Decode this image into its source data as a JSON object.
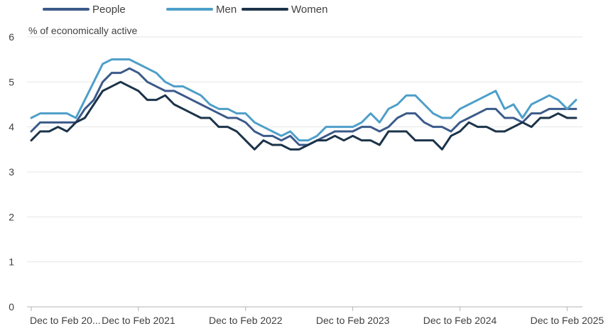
{
  "chart_data": {
    "type": "line",
    "ylabel": "% of economically active",
    "ylim": [
      0,
      6
    ],
    "y_ticks": [
      "0",
      "1",
      "2",
      "3",
      "4",
      "5",
      "6"
    ],
    "x_tick_labels": [
      "Dec to Feb 20...",
      "Dec to Feb 2021",
      "Dec to Feb 2022",
      "Dec to Feb 2023",
      "Dec to Feb 2024",
      "Dec to Feb 2025"
    ],
    "x_tick_indices": [
      0,
      12,
      24,
      36,
      48,
      60
    ],
    "grid": true,
    "legend_position": "top-left",
    "series": [
      {
        "name": "People",
        "color": "#3c5a8a",
        "values": [
          3.9,
          4.1,
          4.1,
          4.1,
          4.1,
          4.1,
          4.4,
          4.6,
          5.0,
          5.2,
          5.2,
          5.3,
          5.2,
          5.0,
          4.9,
          4.8,
          4.8,
          4.7,
          4.6,
          4.5,
          4.4,
          4.3,
          4.2,
          4.2,
          4.1,
          3.9,
          3.8,
          3.8,
          3.7,
          3.8,
          3.6,
          3.6,
          3.7,
          3.8,
          3.9,
          3.9,
          3.9,
          4.0,
          4.0,
          3.9,
          4.0,
          4.2,
          4.3,
          4.3,
          4.1,
          4.0,
          4.0,
          3.9,
          4.1,
          4.2,
          4.3,
          4.4,
          4.4,
          4.2,
          4.2,
          4.1,
          4.3,
          4.3,
          4.4,
          4.4,
          4.4,
          4.4
        ]
      },
      {
        "name": "Men",
        "color": "#4e9fc9",
        "values": [
          4.2,
          4.3,
          4.3,
          4.3,
          4.3,
          4.2,
          4.6,
          5.0,
          5.4,
          5.5,
          5.5,
          5.5,
          5.4,
          5.3,
          5.2,
          5.0,
          4.9,
          4.9,
          4.8,
          4.7,
          4.5,
          4.4,
          4.4,
          4.3,
          4.3,
          4.1,
          4.0,
          3.9,
          3.8,
          3.9,
          3.7,
          3.7,
          3.8,
          4.0,
          4.0,
          4.0,
          4.0,
          4.1,
          4.3,
          4.1,
          4.4,
          4.5,
          4.7,
          4.7,
          4.5,
          4.3,
          4.2,
          4.2,
          4.4,
          4.5,
          4.6,
          4.7,
          4.8,
          4.4,
          4.5,
          4.2,
          4.5,
          4.6,
          4.7,
          4.6,
          4.4,
          4.6
        ]
      },
      {
        "name": "Women",
        "color": "#1b3349",
        "values": [
          3.7,
          3.9,
          3.9,
          4.0,
          3.9,
          4.1,
          4.2,
          4.5,
          4.8,
          4.9,
          5.0,
          4.9,
          4.8,
          4.6,
          4.6,
          4.7,
          4.5,
          4.4,
          4.3,
          4.2,
          4.2,
          4.0,
          4.0,
          3.9,
          3.7,
          3.5,
          3.7,
          3.6,
          3.6,
          3.5,
          3.5,
          3.6,
          3.7,
          3.7,
          3.8,
          3.7,
          3.8,
          3.7,
          3.7,
          3.6,
          3.9,
          3.9,
          3.9,
          3.7,
          3.7,
          3.7,
          3.5,
          3.8,
          3.9,
          4.1,
          4.0,
          4.0,
          3.9,
          3.9,
          4.0,
          4.1,
          4.0,
          4.2,
          4.2,
          4.3,
          4.2,
          4.2
        ]
      }
    ]
  }
}
